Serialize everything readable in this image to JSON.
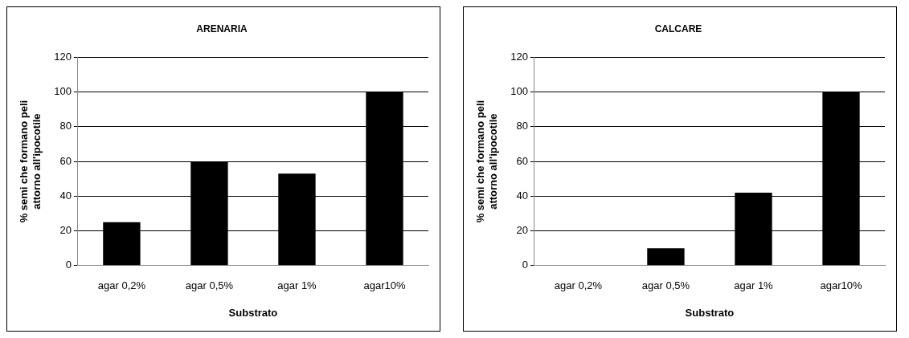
{
  "chart_data": [
    {
      "type": "bar",
      "title": "ARENARIA",
      "xlabel": "Substrato",
      "ylabel": "% semi che formano peli attorno all'ipocotile",
      "categories": [
        "agar 0,2%",
        "agar 0,5%",
        "agar 1%",
        "agar10%"
      ],
      "values": [
        25,
        60,
        53,
        100
      ],
      "color": "#000000",
      "ylim": [
        0,
        120
      ],
      "yticks": [
        0,
        20,
        40,
        60,
        80,
        100,
        120
      ],
      "grid": "y"
    },
    {
      "type": "bar",
      "title": "CALCARE",
      "xlabel": "Substrato",
      "ylabel": "% semi che formano peli attorno all'ipocotile",
      "categories": [
        "agar 0,2%",
        "agar 0,5%",
        "agar 1%",
        "agar10%"
      ],
      "values": [
        0,
        10,
        42,
        100
      ],
      "color": "#000000",
      "ylim": [
        0,
        120
      ],
      "yticks": [
        0,
        20,
        40,
        60,
        80,
        100,
        120
      ],
      "grid": "y"
    }
  ]
}
